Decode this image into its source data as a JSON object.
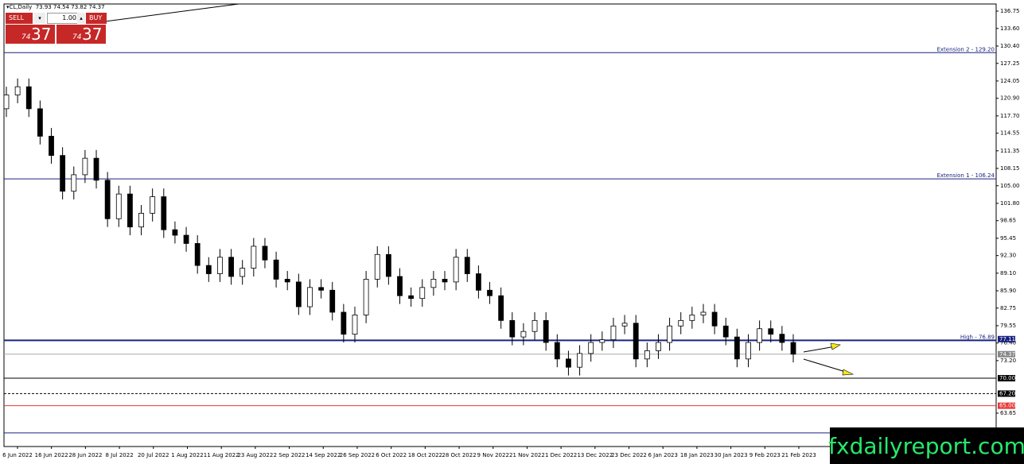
{
  "header": {
    "symbol": "CL,Daily",
    "ohlc": [
      73.93,
      74.54,
      73.82,
      74.37
    ]
  },
  "trade_panel": {
    "sell": "SELL",
    "buy": "BUY",
    "lot": "1.00",
    "sell_price": {
      "small": "74",
      "big": "37"
    },
    "buy_price": {
      "small": "74",
      "big": "37"
    }
  },
  "watermark": "fxdailyreport.com",
  "chart_data": {
    "type": "candlestick",
    "up_color": "#ffffff",
    "down_color": "#000000",
    "ylim": [
      57.58,
      138.05
    ],
    "yticks": [
      {
        "value": 136.75,
        "label": "136.75"
      },
      {
        "value": 133.6,
        "label": "133.60"
      },
      {
        "value": 130.4,
        "label": "130.40"
      },
      {
        "value": 127.25,
        "label": "127.25"
      },
      {
        "value": 124.05,
        "label": "124.05"
      },
      {
        "value": 120.9,
        "label": "120.90"
      },
      {
        "value": 117.7,
        "label": "117.70"
      },
      {
        "value": 114.55,
        "label": "114.55"
      },
      {
        "value": 111.35,
        "label": "111.35"
      },
      {
        "value": 108.15,
        "label": "108.15"
      },
      {
        "value": 105,
        "label": "105.00"
      },
      {
        "value": 101.8,
        "label": "101.80"
      },
      {
        "value": 98.65,
        "label": "98.65"
      },
      {
        "value": 95.45,
        "label": "95.45"
      },
      {
        "value": 92.3,
        "label": "92.30"
      },
      {
        "value": 89.1,
        "label": "89.10"
      },
      {
        "value": 85.9,
        "label": "85.90"
      },
      {
        "value": 82.75,
        "label": "82.75"
      },
      {
        "value": 79.55,
        "label": "79.55"
      },
      {
        "value": 76.4,
        "label": "76.40"
      },
      {
        "value": 73.2,
        "label": "73.20"
      },
      {
        "value": 63.65,
        "label": "63.65"
      }
    ],
    "x_labels": [
      "6 Jun 2022",
      "16 Jun 2022",
      "28 Jun 2022",
      "8 Jul 2022",
      "20 Jul 2022",
      "1 Aug 2022",
      "11 Aug 2022",
      "23 Aug 2022",
      "2 Sep 2022",
      "14 Sep 2022",
      "26 Sep 2022",
      "6 Oct 2022",
      "18 Oct 2022",
      "28 Oct 2022",
      "9 Nov 2022",
      "21 Nov 2022",
      "1 Dec 2022",
      "13 Dec 2022",
      "23 Dec 2022",
      "6 Jan 2023",
      "18 Jan 2023",
      "30 Jan 2023",
      "9 Feb 2023",
      "21 Feb 2023"
    ],
    "open": [
      119,
      121.5,
      123,
      119,
      114,
      110.5,
      104,
      107,
      110,
      106,
      99,
      103.5,
      97.5,
      100,
      103,
      97,
      96,
      94.5,
      90.5,
      89,
      92,
      88.5,
      90,
      94,
      91.5,
      88,
      87.5,
      83,
      86.5,
      86,
      82,
      78,
      81.5,
      88,
      92.5,
      88.5,
      85,
      84.5,
      86.5,
      88,
      87.5,
      92,
      89,
      86,
      85,
      80.5,
      77.5,
      78.5,
      80.5,
      76.5,
      73.5,
      72,
      74.5,
      76.5,
      77,
      79.5,
      80,
      73.5,
      75,
      76.5,
      79.5,
      80.5,
      81.5,
      82,
      79.5,
      77.5,
      73.5,
      76.5,
      79,
      78,
      76.5
    ],
    "high": [
      123,
      124.5,
      124.5,
      120.5,
      115.5,
      112,
      108.5,
      111.5,
      111.5,
      107.5,
      105,
      105,
      101.5,
      104.5,
      104.5,
      98.5,
      97.5,
      96,
      92,
      93.5,
      93.5,
      91.5,
      95.5,
      95.5,
      93,
      89.5,
      89,
      88,
      88,
      87.5,
      83.5,
      83,
      89.5,
      94,
      94,
      90,
      86.5,
      88,
      89.5,
      89.5,
      93.5,
      93.5,
      90.5,
      87.5,
      86.5,
      82,
      80,
      82,
      82,
      78,
      75,
      76,
      78,
      78.5,
      81,
      81.5,
      81.5,
      76.5,
      78,
      81,
      82,
      83,
      83.5,
      83.5,
      81,
      79,
      78,
      80.5,
      80.5,
      79.5,
      78
    ],
    "low": [
      117.5,
      120,
      117.5,
      112.5,
      109,
      102.5,
      102.5,
      105.5,
      104.5,
      97.5,
      97.5,
      96,
      96,
      98.5,
      95.5,
      94.5,
      93,
      89,
      87.5,
      87.5,
      87,
      87,
      88.5,
      90,
      86.5,
      86,
      81.5,
      81.5,
      84.5,
      80.5,
      76.5,
      76.5,
      80,
      86.5,
      87,
      83.5,
      83,
      83,
      85,
      86,
      86,
      87.5,
      84.5,
      83.5,
      79,
      76,
      76,
      77,
      75,
      72,
      70.5,
      70.5,
      73,
      75,
      75.5,
      78,
      72,
      72,
      73.5,
      75,
      78,
      79,
      80,
      78,
      76,
      72,
      72,
      75,
      76.5,
      75,
      72.87
    ],
    "close": [
      121.5,
      123,
      119,
      114,
      110.5,
      104,
      107,
      110,
      106,
      99,
      103.5,
      97.5,
      100,
      103,
      97,
      96,
      94.5,
      90.5,
      89,
      92,
      88.5,
      90,
      94,
      91.5,
      88,
      87.5,
      83,
      86.5,
      86,
      82,
      78,
      81.5,
      88,
      92.5,
      88.5,
      85,
      84.5,
      86.5,
      88,
      87.5,
      92,
      89,
      86,
      85,
      80.5,
      77.5,
      78.5,
      80.5,
      76.5,
      73.5,
      72,
      74.5,
      76.5,
      77,
      79.5,
      80,
      73.5,
      75,
      76.5,
      79.5,
      80.5,
      81.5,
      82,
      79.5,
      77.5,
      73.5,
      76.5,
      79,
      78,
      76.5,
      74.37
    ],
    "levels": [
      {
        "value": 129.2,
        "label": "Extension 2 - 129.20",
        "color": "#1a237e",
        "width": 1,
        "style": "solid"
      },
      {
        "value": 106.24,
        "label": "Extension 1 - 106.24",
        "color": "#1a237e",
        "width": 1,
        "style": "solid"
      },
      {
        "value": 76.89,
        "label": "High - 76.89",
        "color": "#1a237e",
        "width": 2,
        "style": "solid"
      },
      {
        "value": 74.37,
        "color": "#aaaaaa",
        "width": 1,
        "style": "solid"
      },
      {
        "value": 70,
        "color": "#000000",
        "width": 1,
        "style": "solid"
      },
      {
        "value": 67.2,
        "color": "#000000",
        "width": 1,
        "style": "dashed"
      },
      {
        "value": 65,
        "color": "#e53935",
        "width": 1,
        "style": "solid"
      },
      {
        "value": 60.05,
        "color": "#1a237e",
        "width": 1,
        "style": "solid"
      }
    ],
    "price_tags": [
      {
        "value": 77.11,
        "label": "77.11",
        "color": "#1a237e"
      },
      {
        "value": 74.37,
        "label": "74.37",
        "color": "#888888"
      },
      {
        "value": 70,
        "label": "70.00",
        "color": "#000000"
      },
      {
        "value": 67.2,
        "label": "67.20",
        "color": "#000000"
      },
      {
        "value": 65,
        "label": "65.00",
        "color": "#e53935"
      }
    ]
  }
}
